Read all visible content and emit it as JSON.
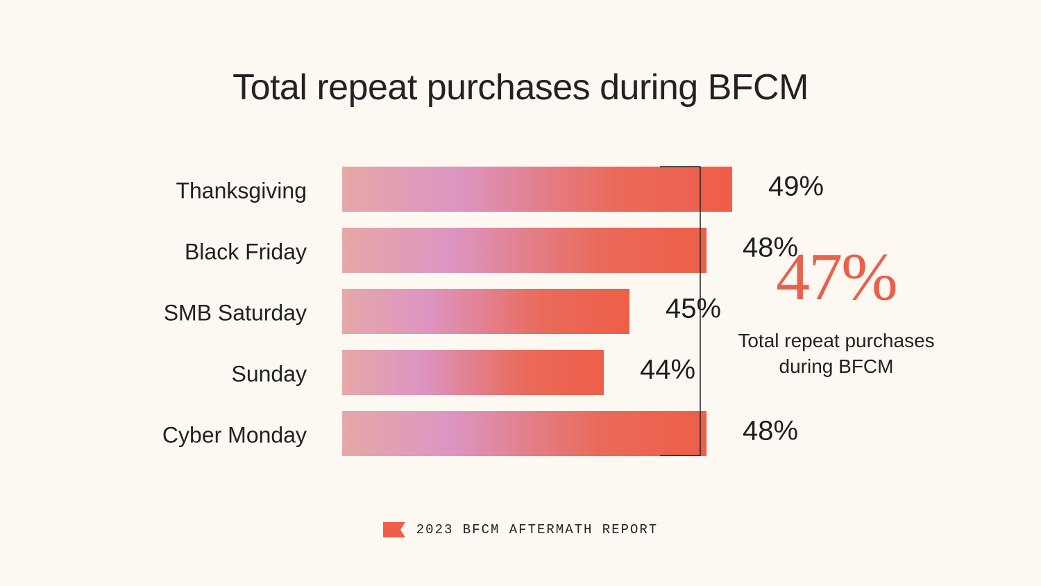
{
  "title": "Total repeat purchases during BFCM",
  "chart_data": {
    "type": "bar",
    "orientation": "horizontal",
    "title": "Total repeat purchases during BFCM",
    "categories": [
      "Thanksgiving",
      "Black Friday",
      "SMB Saturday",
      "Sunday",
      "Cyber Monday"
    ],
    "values": [
      49,
      48,
      45,
      44,
      48
    ],
    "value_labels": [
      "49%",
      "48%",
      "45%",
      "44%",
      "48%"
    ],
    "unit": "%",
    "xlim": [
      35,
      50
    ],
    "grid": false,
    "bar_gradient": [
      "#e6a8a8",
      "#dc95c2",
      "#ea6a5a",
      "#ee5e48"
    ]
  },
  "summary": {
    "value": "47%",
    "caption_line1": "Total repeat purchases",
    "caption_line2": "during BFCM",
    "accent_color": "#e9604b"
  },
  "footer": {
    "text": "2023 BFCM AFTERMATH REPORT",
    "icon": "flag-icon"
  }
}
